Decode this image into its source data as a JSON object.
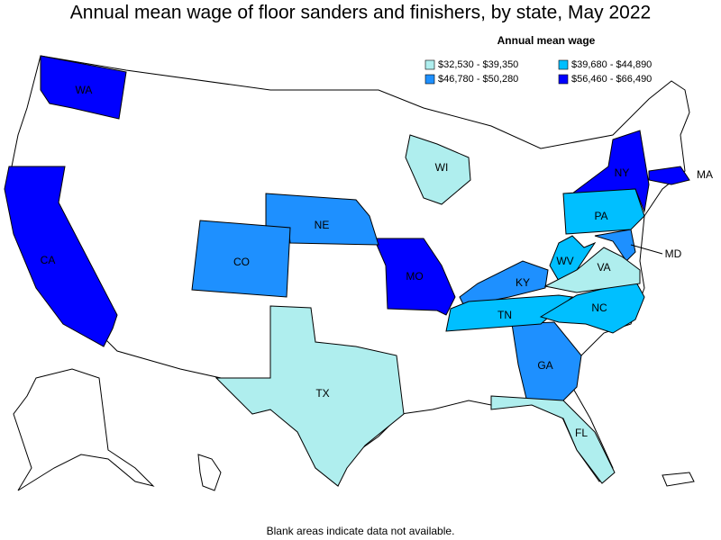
{
  "title": "Annual mean wage of floor sanders and finishers, by state, May 2022",
  "legend": {
    "title": "Annual mean wage",
    "items": [
      {
        "label": "$32,530 - $39,350",
        "color": "#afeeee",
        "states": [
          "WI",
          "TX",
          "VA",
          "FL"
        ]
      },
      {
        "label": "$39,680 - $44,890",
        "color": "#00bfff",
        "states": [
          "PA",
          "WV",
          "TN",
          "NC"
        ]
      },
      {
        "label": "$46,780 - $50,280",
        "color": "#1e90ff",
        "states": [
          "NE",
          "CO",
          "KY",
          "GA",
          "MD"
        ]
      },
      {
        "label": "$56,460 - $66,490",
        "color": "#0000ff",
        "states": [
          "WA",
          "CA",
          "MO",
          "NY",
          "MA"
        ]
      }
    ]
  },
  "footnote": "Blank areas indicate data not available."
}
